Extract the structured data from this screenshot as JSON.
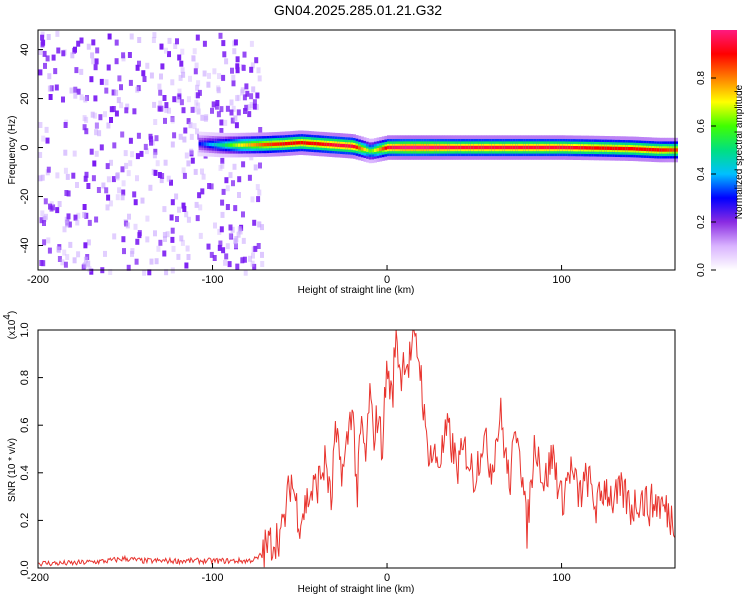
{
  "chart_data": [
    {
      "type": "heatmap",
      "title": "GN04.2025.285.01.21.G32",
      "xlabel": "Height of straight line (km)",
      "ylabel": "Frequency (Hz)",
      "xlim": [
        -200,
        165
      ],
      "ylim": [
        -50,
        48
      ],
      "x_ticks": [
        "-200",
        "-100",
        "0",
        "100"
      ],
      "y_ticks": [
        "-40",
        "-20",
        "0",
        "20",
        "40"
      ],
      "grid": false,
      "colorbar": {
        "label": "Normalized spectral amplitude",
        "range": [
          0,
          1
        ],
        "ticks": [
          "0.0",
          "0.2",
          "0.4",
          "0.6",
          "0.8"
        ],
        "colors": [
          "#ffffff",
          "#d9b3ff",
          "#8a2be2",
          "#0000ff",
          "#00c0ff",
          "#00e080",
          "#40ff00",
          "#ffff00",
          "#ff8000",
          "#ff0000",
          "#ff1a80"
        ]
      },
      "noise_region": {
        "x_start": -200,
        "x_end": -72,
        "color": "#7a1bf2"
      },
      "feature_x": [
        -108,
        -95,
        -85,
        -70,
        -60,
        -50,
        -40,
        -30,
        -20,
        -10,
        0,
        10,
        20,
        40,
        60,
        80,
        100,
        120,
        140,
        155,
        165
      ],
      "feature_center_hz": [
        1.5,
        1.0,
        1.0,
        1.2,
        1.5,
        2.0,
        1.5,
        1.0,
        0.5,
        -1.5,
        0.0,
        0.0,
        0.0,
        0.0,
        0.0,
        0.0,
        0.0,
        -0.2,
        -0.5,
        -1.0,
        -1.0
      ],
      "feature_peak_amp": [
        0.3,
        0.5,
        0.7,
        0.85,
        0.9,
        0.9,
        0.9,
        0.95,
        0.95,
        0.6,
        0.95,
        1.0,
        1.0,
        0.95,
        0.95,
        0.95,
        0.95,
        0.9,
        0.9,
        0.9,
        0.85
      ]
    },
    {
      "type": "line",
      "xlabel": "Height of straight line (km)",
      "ylabel": "SNR (10 * v/v)",
      "y_multiplier": "(x10",
      "y_multiplier_exp": "4",
      "y_multiplier_close": ")",
      "xlim": [
        -200,
        165
      ],
      "ylim": [
        0,
        1.0
      ],
      "x_ticks": [
        "-200",
        "-100",
        "0",
        "100"
      ],
      "y_ticks": [
        "0.0",
        "0.2",
        "0.4",
        "0.6",
        "0.8",
        "1.0"
      ],
      "grid": false,
      "series": [
        {
          "color": "#e8342e",
          "x": [
            -200,
            -180,
            -160,
            -150,
            -140,
            -120,
            -100,
            -80,
            -74,
            -70,
            -65,
            -60,
            -55,
            -50,
            -45,
            -40,
            -35,
            -32,
            -30,
            -25,
            -20,
            -17,
            -15,
            -12,
            -10,
            -8,
            -5,
            -3,
            0,
            3,
            5,
            8,
            10,
            12,
            15,
            18,
            20,
            22,
            25,
            30,
            35,
            40,
            45,
            50,
            55,
            60,
            65,
            70,
            75,
            80,
            85,
            90,
            95,
            100,
            105,
            110,
            115,
            120,
            125,
            130,
            135,
            140,
            145,
            150,
            155,
            160,
            165
          ],
          "y": [
            0.02,
            0.02,
            0.03,
            0.04,
            0.03,
            0.03,
            0.03,
            0.03,
            0.04,
            0.08,
            0.12,
            0.15,
            0.38,
            0.2,
            0.3,
            0.35,
            0.45,
            0.25,
            0.55,
            0.4,
            0.7,
            0.3,
            0.6,
            0.45,
            0.75,
            0.55,
            0.65,
            0.5,
            0.85,
            0.7,
            1.0,
            0.8,
            0.9,
            0.85,
            0.95,
            0.9,
            0.78,
            0.55,
            0.48,
            0.45,
            0.58,
            0.42,
            0.5,
            0.38,
            0.55,
            0.42,
            0.65,
            0.35,
            0.62,
            0.15,
            0.55,
            0.35,
            0.48,
            0.28,
            0.42,
            0.3,
            0.38,
            0.25,
            0.35,
            0.28,
            0.32,
            0.25,
            0.3,
            0.26,
            0.28,
            0.24,
            0.2
          ]
        }
      ]
    }
  ]
}
